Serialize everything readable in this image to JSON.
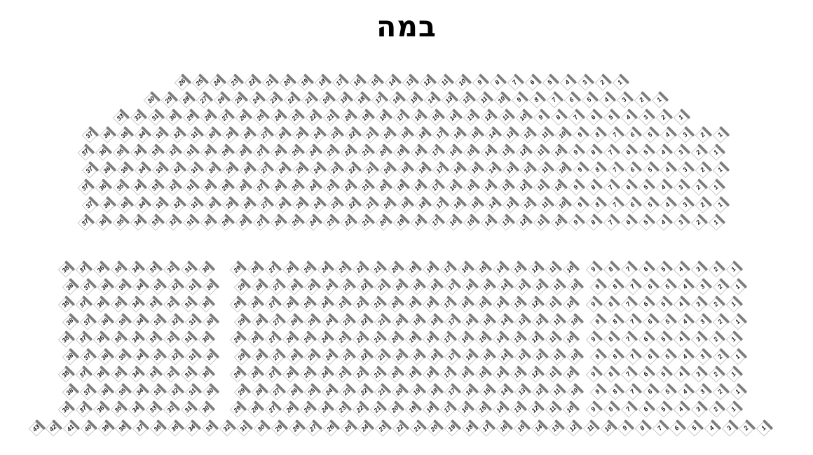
{
  "title": "במה",
  "colors": {
    "title_color": "#000000",
    "seat_border": "#c6c6c6",
    "seat_back": "#7d7d7d",
    "seat_number": "#1c1c1c"
  },
  "seat_map": {
    "numbering_direction": "right-to-left",
    "upper_section": {
      "rows": [
        {
          "seats_from": 1,
          "seats_to": 26
        },
        {
          "seats_from": 1,
          "seats_to": 30
        },
        {
          "seats_from": 1,
          "seats_to": 33
        },
        {
          "seats_from": 1,
          "seats_to": 37
        },
        {
          "seats_from": 1,
          "seats_to": 37
        },
        {
          "seats_from": 1,
          "seats_to": 37
        },
        {
          "seats_from": 1,
          "seats_to": 37
        },
        {
          "seats_from": 1,
          "seats_to": 37
        },
        {
          "seats_from": 1,
          "seats_to": 37
        }
      ]
    },
    "lower_section": {
      "row_count": 9,
      "blocks": [
        {
          "name": "right",
          "seats_from": 1,
          "seats_to": 9
        },
        {
          "name": "center",
          "seats_from": 10,
          "seats_to": 29
        },
        {
          "name": "left",
          "seats_from": 30,
          "seats_to": 38
        }
      ]
    },
    "back_row": {
      "seats_from": 1,
      "seats_to": 43
    }
  }
}
